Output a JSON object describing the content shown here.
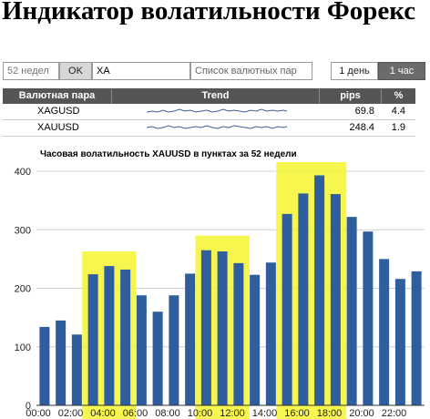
{
  "page": {
    "title": "Индикатор волатильности Форекс"
  },
  "toolbar": {
    "weeks_placeholder": "52 недел",
    "ok_label": "OK",
    "search_value": "XA",
    "pairs_placeholder": "Список валютных пар",
    "day_label": "1 день",
    "hour_label": "1 час"
  },
  "table": {
    "headers": {
      "pair": "Валютная пара",
      "trend": "Trend",
      "pips": "pips",
      "pct": "%"
    },
    "rows": [
      {
        "pair": "XAGUSD",
        "pips": "69.8",
        "pct": "4.4"
      },
      {
        "pair": "XAUUSD",
        "pips": "248.4",
        "pct": "1.9"
      }
    ]
  },
  "colors": {
    "bar": "#2e5e9e",
    "highlight": "#f5f530",
    "header": "#555555",
    "active_button": "#6b6b6b"
  },
  "chart_data": {
    "type": "bar",
    "title": "Часовая волатильность XAUUSD в пунктах за 52 недели",
    "categories": [
      "00:00",
      "01:00",
      "02:00",
      "03:00",
      "04:00",
      "05:00",
      "06:00",
      "07:00",
      "08:00",
      "09:00",
      "10:00",
      "11:00",
      "12:00",
      "13:00",
      "14:00",
      "15:00",
      "16:00",
      "17:00",
      "18:00",
      "19:00",
      "20:00",
      "21:00",
      "22:00",
      "23:00"
    ],
    "x_tick_labels": [
      "00:00",
      "02:00",
      "04:00",
      "06:00",
      "08:00",
      "10:00",
      "12:00",
      "14:00",
      "16:00",
      "18:00",
      "20:00",
      "22:00"
    ],
    "values": [
      134,
      145,
      121,
      224,
      238,
      232,
      188,
      160,
      188,
      225,
      265,
      263,
      243,
      223,
      244,
      327,
      362,
      393,
      361,
      322,
      297,
      250,
      216,
      229
    ],
    "highlighted_hours": [
      [
        3,
        5
      ],
      [
        10,
        12
      ],
      [
        15,
        18
      ]
    ],
    "y_ticks": [
      0,
      100,
      200,
      300,
      400
    ],
    "ylim": [
      0,
      400
    ],
    "grid": true
  }
}
